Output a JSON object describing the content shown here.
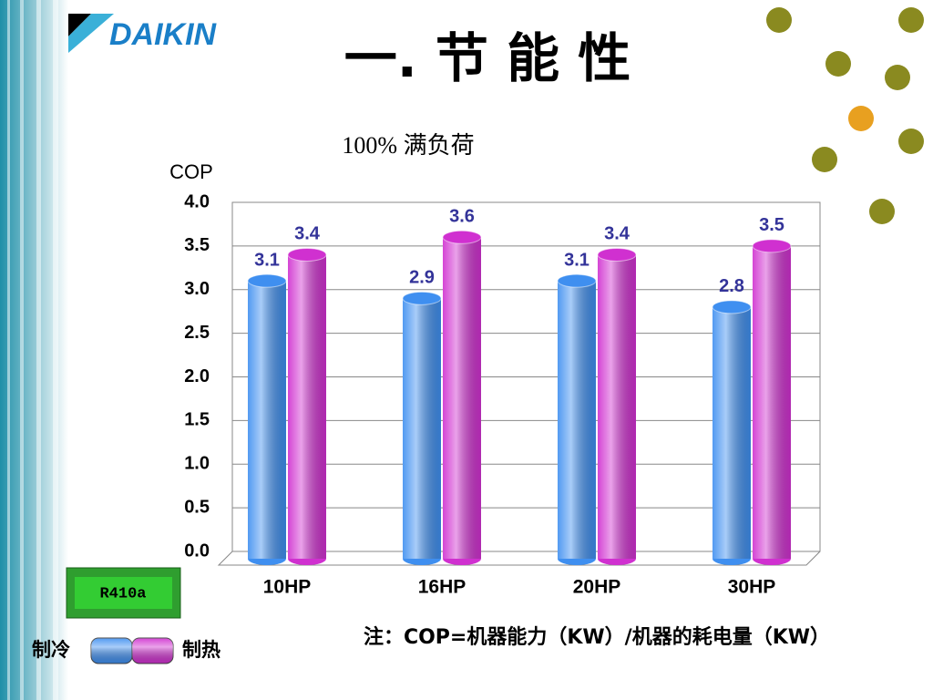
{
  "logo": "DAIKIN",
  "title": "一. 节 能 性",
  "badge": "R410a",
  "note": "注：COP=机器能力（KW）/机器的耗电量（KW）",
  "chart_data": {
    "type": "bar",
    "subtitle": "100% 满负荷",
    "y_label": "COP",
    "categories": [
      "10HP",
      "16HP",
      "20HP",
      "30HP"
    ],
    "series": [
      {
        "name": "制冷",
        "color": "#3f8ff0",
        "values": [
          3.1,
          2.9,
          3.1,
          2.8
        ]
      },
      {
        "name": "制热",
        "color": "#d030d0",
        "values": [
          3.4,
          3.6,
          3.4,
          3.5
        ]
      }
    ],
    "ylim": [
      0,
      4
    ],
    "yticks": [
      {
        "value": 0,
        "label": "0.0"
      },
      0.5,
      {
        "value": 1,
        "label": "1.0"
      },
      1.5,
      {
        "value": 2,
        "label": "2.0"
      },
      2.5,
      {
        "value": 3,
        "label": "3.0"
      },
      3.5,
      {
        "value": 4,
        "label": "4.0"
      }
    ],
    "grid": true
  }
}
